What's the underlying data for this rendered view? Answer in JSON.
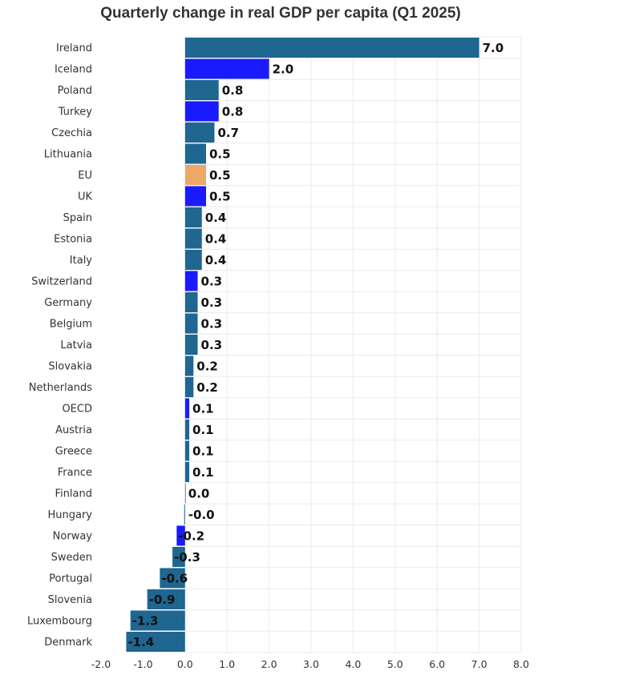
{
  "chart_data": {
    "type": "bar",
    "orientation": "horizontal",
    "title": "Quarterly change in real GDP per capita (Q1 2025)",
    "xlabel": "",
    "ylabel": "",
    "xlim": [
      -2.0,
      8.0
    ],
    "xticks": [
      "-2.0",
      "-1.0",
      "0.0",
      "1.0",
      "2.0",
      "3.0",
      "4.0",
      "5.0",
      "6.0",
      "7.0",
      "8.0"
    ],
    "grid": true,
    "colors": {
      "default": "#1f6690",
      "highlight": "#1a1aff",
      "eu": "#eda766"
    },
    "categories": [
      "Ireland",
      "Iceland",
      "Poland",
      "Turkey",
      "Czechia",
      "Lithuania",
      "EU",
      "UK",
      "Spain",
      "Estonia",
      "Italy",
      "Switzerland",
      "Germany",
      "Belgium",
      "Latvia",
      "Slovakia",
      "Netherlands",
      "OECD",
      "Austria",
      "Greece",
      "France",
      "Finland",
      "Hungary",
      "Norway",
      "Sweden",
      "Portugal",
      "Slovenia",
      "Luxembourg",
      "Denmark"
    ],
    "values": [
      7.0,
      2.0,
      0.8,
      0.8,
      0.7,
      0.5,
      0.5,
      0.5,
      0.4,
      0.4,
      0.4,
      0.3,
      0.3,
      0.3,
      0.3,
      0.2,
      0.2,
      0.1,
      0.1,
      0.1,
      0.1,
      0.0,
      -0.02,
      -0.2,
      -0.3,
      -0.6,
      -0.9,
      -1.3,
      -1.4
    ],
    "value_labels": [
      "7.0",
      "2.0",
      "0.8",
      "0.8",
      "0.7",
      "0.5",
      "0.5",
      "0.5",
      "0.4",
      "0.4",
      "0.4",
      "0.3",
      "0.3",
      "0.3",
      "0.3",
      "0.2",
      "0.2",
      "0.1",
      "0.1",
      "0.1",
      "0.1",
      "0.0",
      "-0.0",
      "-0.2",
      "-0.3",
      "-0.6",
      "-0.9",
      "-1.3",
      "-1.4"
    ],
    "bar_colors": [
      "default",
      "highlight",
      "default",
      "highlight",
      "default",
      "default",
      "eu",
      "highlight",
      "default",
      "default",
      "default",
      "highlight",
      "default",
      "default",
      "default",
      "default",
      "default",
      "highlight",
      "default",
      "default",
      "default",
      "default",
      "default",
      "highlight",
      "default",
      "default",
      "default",
      "default",
      "default"
    ]
  }
}
